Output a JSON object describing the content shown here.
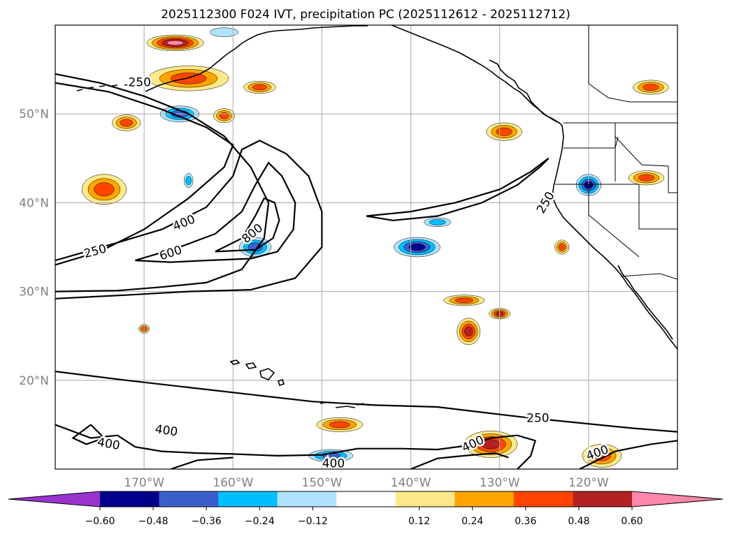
{
  "chart_data": {
    "type": "heatmap",
    "title": "2025112300 F024 IVT, precipitation PC (2025112612 - 2025112712)",
    "xlim": [
      -180,
      -110
    ],
    "ylim": [
      10,
      60
    ],
    "lon_ticks": [
      {
        "value": -170,
        "label": "170°W"
      },
      {
        "value": -160,
        "label": "160°W"
      },
      {
        "value": -150,
        "label": "150°W"
      },
      {
        "value": -140,
        "label": "140°W"
      },
      {
        "value": -130,
        "label": "130°W"
      },
      {
        "value": -120,
        "label": "120°W"
      }
    ],
    "lat_ticks": [
      {
        "value": 20,
        "label": "20°N"
      },
      {
        "value": 30,
        "label": "30°N"
      },
      {
        "value": 40,
        "label": "40°N"
      },
      {
        "value": 50,
        "label": "50°N"
      }
    ],
    "grid": true,
    "colorbar": {
      "orientation": "horizontal",
      "extend": "both",
      "levels": [
        -0.72,
        -0.6,
        -0.48,
        -0.36,
        -0.24,
        -0.12,
        0.12,
        0.24,
        0.36,
        0.48,
        0.6,
        0.72
      ],
      "tick_labels": [
        "−0.60",
        "−0.48",
        "−0.36",
        "−0.24",
        "−0.12",
        "0.12",
        "0.24",
        "0.36",
        "0.48",
        "0.60"
      ],
      "tick_values": [
        -0.6,
        -0.48,
        -0.36,
        -0.24,
        -0.12,
        0.12,
        0.24,
        0.36,
        0.48,
        0.6
      ],
      "colors": [
        "#9933cc",
        "#00008b",
        "#3a5fcd",
        "#00bfff",
        "#b0e2ff",
        "#ffffff",
        "#fee98a",
        "#ffa500",
        "#ff4500",
        "#b22222",
        "#ff88aa"
      ],
      "under_color": "#9933cc",
      "over_color": "#ff88aa"
    },
    "ivt_contour_labels": [
      {
        "text": "250",
        "lon": -170.5,
        "lat": 53.5,
        "rot": 0
      },
      {
        "text": "250",
        "lon": -175.5,
        "lat": 34.5,
        "rot": -15
      },
      {
        "text": "400",
        "lon": -165.5,
        "lat": 37.7,
        "rot": -22
      },
      {
        "text": "600",
        "lon": -167.0,
        "lat": 34.3,
        "rot": -18
      },
      {
        "text": "800",
        "lon": -157.8,
        "lat": 36.5,
        "rot": -40
      },
      {
        "text": "250",
        "lon": -124.8,
        "lat": 40.0,
        "rot": -60
      },
      {
        "text": "250",
        "lon": -125.7,
        "lat": 15.7,
        "rot": 0
      },
      {
        "text": "400",
        "lon": -174.0,
        "lat": 12.8,
        "rot": 10
      },
      {
        "text": "400",
        "lon": -167.5,
        "lat": 14.3,
        "rot": 8
      },
      {
        "text": "400",
        "lon": -148.7,
        "lat": 10.6,
        "rot": 0
      },
      {
        "text": "400",
        "lon": -133.0,
        "lat": 12.8,
        "rot": -25
      },
      {
        "text": "400",
        "lon": -119.0,
        "lat": 11.8,
        "rot": -20
      }
    ],
    "ivt_contours": [
      {
        "level": 250,
        "points": [
          [
            -180,
            54.5
          ],
          [
            -175,
            53.5
          ],
          [
            -170,
            52
          ],
          [
            -165,
            50
          ],
          [
            -161,
            47.5
          ],
          [
            -158,
            44
          ],
          [
            -156,
            40
          ],
          [
            -156.5,
            36
          ],
          [
            -159,
            32.5
          ],
          [
            -163,
            31
          ],
          [
            -168,
            30.5
          ],
          [
            -173,
            30.1
          ],
          [
            -180,
            30
          ]
        ]
      },
      {
        "level": 250,
        "points": [
          [
            -180,
            33
          ],
          [
            -175,
            34.5
          ],
          [
            -170,
            37
          ],
          [
            -165,
            40.5
          ],
          [
            -161,
            44
          ],
          [
            -160,
            46.5
          ],
          [
            -163,
            48.5
          ],
          [
            -168,
            50.5
          ],
          [
            -174,
            52.5
          ],
          [
            -180,
            53.5
          ]
        ]
      },
      {
        "level": 400,
        "points": [
          [
            -180,
            29.2
          ],
          [
            -172,
            29.6
          ],
          [
            -165,
            30
          ],
          [
            -158,
            30.2
          ],
          [
            -153,
            31.5
          ],
          [
            -150,
            35
          ],
          [
            -150,
            39
          ],
          [
            -151.5,
            43
          ],
          [
            -154,
            45.5
          ],
          [
            -157,
            47
          ],
          [
            -159,
            46
          ],
          [
            -160,
            43
          ],
          [
            -163,
            39.5
          ],
          [
            -168,
            37
          ],
          [
            -173,
            35.5
          ],
          [
            -180,
            33.5
          ]
        ]
      },
      {
        "level": 600,
        "points": [
          [
            -171,
            33.5
          ],
          [
            -166,
            35
          ],
          [
            -162,
            36.5
          ],
          [
            -159,
            39
          ],
          [
            -157.5,
            42
          ],
          [
            -156,
            44.5
          ],
          [
            -154.5,
            43
          ],
          [
            -153,
            40
          ],
          [
            -153.2,
            37
          ],
          [
            -155,
            34.5
          ],
          [
            -158,
            33.7
          ],
          [
            -163,
            33.5
          ],
          [
            -167,
            33.3
          ],
          [
            -171,
            33.5
          ]
        ]
      },
      {
        "level": 800,
        "points": [
          [
            -162,
            34.5
          ],
          [
            -159,
            36
          ],
          [
            -157.5,
            38.5
          ],
          [
            -156.5,
            40.5
          ],
          [
            -155.3,
            40
          ],
          [
            -154.8,
            38
          ],
          [
            -155.5,
            36
          ],
          [
            -157.5,
            34.7
          ],
          [
            -162,
            34.5
          ]
        ]
      },
      {
        "level": 250,
        "points": [
          [
            -145,
            38.5
          ],
          [
            -140,
            39
          ],
          [
            -135,
            40
          ],
          [
            -130,
            41.5
          ],
          [
            -126.5,
            43.5
          ],
          [
            -124.5,
            45
          ],
          [
            -125.5,
            44
          ],
          [
            -128,
            42
          ],
          [
            -132,
            40
          ],
          [
            -137,
            38.5
          ],
          [
            -142,
            38
          ],
          [
            -145,
            38.5
          ]
        ]
      },
      {
        "level": 250,
        "points": [
          [
            -180,
            21
          ],
          [
            -172,
            20
          ],
          [
            -165,
            19.2
          ],
          [
            -158,
            18.4
          ],
          [
            -151,
            17.6
          ],
          [
            -144,
            17.2
          ],
          [
            -137,
            17.0
          ],
          [
            -132,
            16.4
          ],
          [
            -127,
            15.8
          ],
          [
            -121,
            15.2
          ],
          [
            -115,
            14.6
          ],
          [
            -110,
            14.2
          ]
        ]
      },
      {
        "level": 400,
        "points": [
          [
            -180,
            15
          ],
          [
            -176,
            13.5
          ],
          [
            -173,
            13.8
          ],
          [
            -171,
            12.5
          ],
          [
            -168,
            12
          ],
          [
            -164,
            11.8
          ],
          [
            -160,
            11.7
          ],
          [
            -155,
            11.5
          ],
          [
            -150,
            11.6
          ],
          [
            -146,
            12.3
          ],
          [
            -141,
            12.3
          ],
          [
            -137,
            12.2
          ],
          [
            -134,
            12.6
          ],
          [
            -131,
            13.5
          ],
          [
            -128,
            13.8
          ],
          [
            -126,
            13.2
          ],
          [
            -126.5,
            11.5
          ],
          [
            -128,
            10
          ]
        ]
      },
      {
        "level": 400,
        "points": [
          [
            -167,
            10
          ],
          [
            -164,
            11
          ],
          [
            -160,
            11.3
          ]
        ]
      },
      {
        "level": 400,
        "points": [
          [
            -140,
            10
          ],
          [
            -137,
            11.2
          ],
          [
            -134,
            11.5
          ],
          [
            -130.5,
            11.8
          ],
          [
            -129,
            11.3
          ]
        ]
      },
      {
        "level": 400,
        "points": [
          [
            -121,
            10
          ],
          [
            -117,
            12
          ],
          [
            -113,
            12.8
          ],
          [
            -110,
            13.2
          ]
        ]
      },
      {
        "level": 400,
        "points": [
          [
            -176,
            15
          ],
          [
            -178,
            13.5
          ],
          [
            -176.5,
            12.8
          ],
          [
            -174.5,
            13.5
          ],
          [
            -176,
            15
          ]
        ]
      }
    ],
    "precip_pc_features": [
      {
        "lon": -166.5,
        "lat": 58.0,
        "rx": 3.2,
        "ry": 0.9,
        "value": 0.62
      },
      {
        "lon": -161.0,
        "lat": 59.2,
        "rx": 1.6,
        "ry": 0.5,
        "value": -0.2
      },
      {
        "lon": -165.0,
        "lat": 54.0,
        "rx": 4.5,
        "ry": 1.4,
        "value": 0.42
      },
      {
        "lon": -157.0,
        "lat": 53.0,
        "rx": 1.8,
        "ry": 0.7,
        "value": 0.38
      },
      {
        "lon": -166.0,
        "lat": 50.0,
        "rx": 2.2,
        "ry": 0.9,
        "value": -0.45
      },
      {
        "lon": -161.0,
        "lat": 49.8,
        "rx": 1.2,
        "ry": 0.8,
        "value": 0.45
      },
      {
        "lon": -174.5,
        "lat": 41.5,
        "rx": 2.5,
        "ry": 1.7,
        "value": 0.4
      },
      {
        "lon": -172.0,
        "lat": 49.0,
        "rx": 1.6,
        "ry": 0.9,
        "value": 0.38
      },
      {
        "lon": -157.5,
        "lat": 35.0,
        "rx": 1.8,
        "ry": 1.1,
        "value": -0.42
      },
      {
        "lon": -139.3,
        "lat": 35.0,
        "rx": 2.6,
        "ry": 1.1,
        "value": -0.58
      },
      {
        "lon": -137.0,
        "lat": 37.8,
        "rx": 1.5,
        "ry": 0.5,
        "value": -0.3
      },
      {
        "lon": -120.0,
        "lat": 42.0,
        "rx": 1.4,
        "ry": 1.2,
        "value": -0.55
      },
      {
        "lon": -129.5,
        "lat": 48.0,
        "rx": 2.0,
        "ry": 1.0,
        "value": 0.42
      },
      {
        "lon": -133.5,
        "lat": 25.5,
        "rx": 1.3,
        "ry": 1.5,
        "value": 0.52
      },
      {
        "lon": -134.0,
        "lat": 29.0,
        "rx": 2.3,
        "ry": 0.6,
        "value": 0.42
      },
      {
        "lon": -130.0,
        "lat": 27.5,
        "rx": 1.2,
        "ry": 0.6,
        "value": 0.5
      },
      {
        "lon": -131.0,
        "lat": 12.8,
        "rx": 3.0,
        "ry": 1.5,
        "value": 0.5
      },
      {
        "lon": -118.5,
        "lat": 11.5,
        "rx": 2.2,
        "ry": 1.3,
        "value": 0.44
      },
      {
        "lon": -148.0,
        "lat": 15.0,
        "rx": 2.6,
        "ry": 0.8,
        "value": 0.42
      },
      {
        "lon": -149.0,
        "lat": 11.5,
        "rx": 2.5,
        "ry": 0.7,
        "value": -0.45
      },
      {
        "lon": -113.0,
        "lat": 53.0,
        "rx": 2.0,
        "ry": 0.8,
        "value": 0.4
      },
      {
        "lon": -113.5,
        "lat": 42.8,
        "rx": 2.0,
        "ry": 0.8,
        "value": 0.4
      },
      {
        "lon": -170.0,
        "lat": 25.8,
        "rx": 0.6,
        "ry": 0.5,
        "value": 0.42
      },
      {
        "lon": -123.0,
        "lat": 35.0,
        "rx": 0.8,
        "ry": 0.8,
        "value": 0.42
      },
      {
        "lon": -165.0,
        "lat": 42.5,
        "rx": 0.5,
        "ry": 0.8,
        "value": -0.3
      }
    ],
    "annotations": []
  }
}
